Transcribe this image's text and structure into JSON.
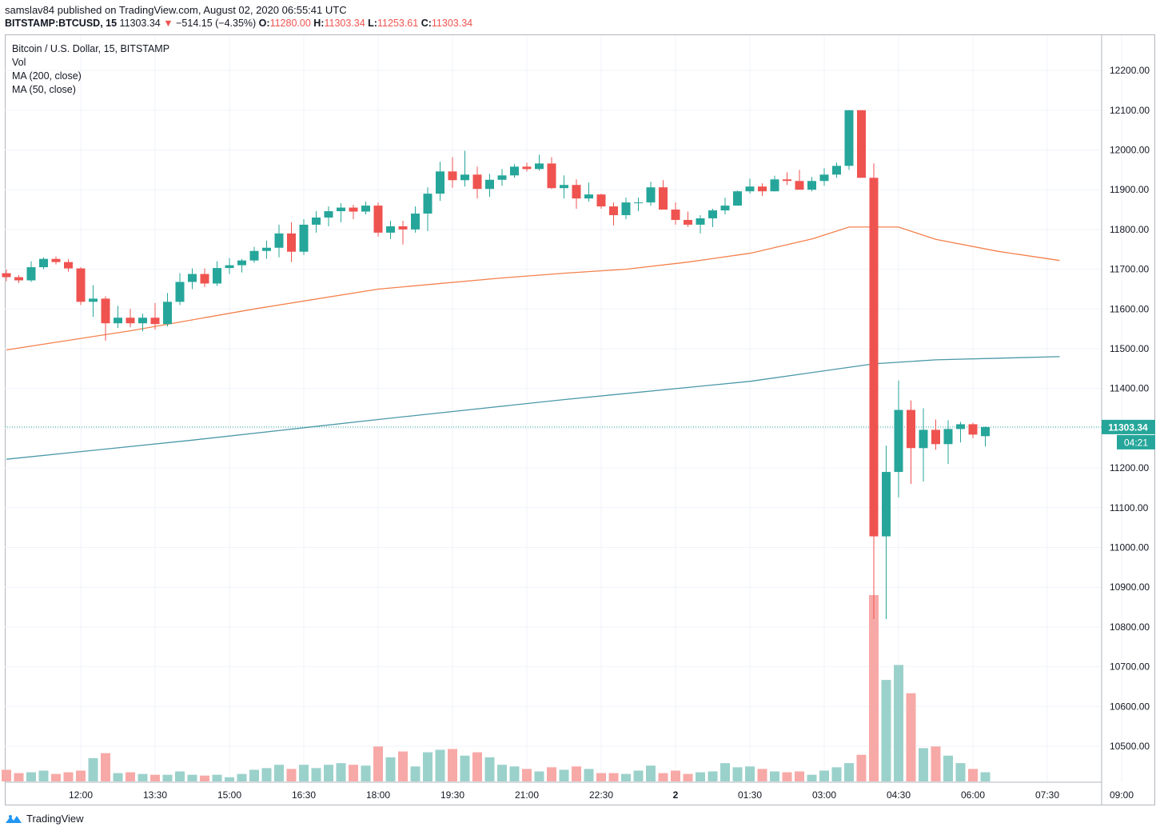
{
  "publish_line": "samslav84 published on TradingView.com, August 02, 2020 06:55:41 UTC",
  "symbol_line": {
    "symbol": "BITSTAMP:BTCUSD, 15",
    "last": "11303.34",
    "change": "−514.15 (−4.35%)",
    "o_label": "O:",
    "o": "11280.00",
    "h_label": "H:",
    "h": "11303.34",
    "l_label": "L:",
    "l": "11253.61",
    "c_label": "C:",
    "c": "11303.34"
  },
  "legend": {
    "title": "Bitcoin / U.S. Dollar, 15, BITSTAMP",
    "vol": "Vol",
    "ma200": "MA (200, close)",
    "ma50": "MA (50, close)"
  },
  "colors": {
    "up": "#26a69a",
    "down": "#ef5350",
    "up_vol": "#9bd1cb",
    "down_vol": "#f7a9a7",
    "ma200": "#4a98a8",
    "ma50": "#f4804c",
    "grid": "#f0f3fa",
    "axis_text": "#131722"
  },
  "last_price_label": "11303.34",
  "countdown_label": "04:21",
  "footer_brand": "TradingView",
  "chart_data": {
    "type": "candlestick",
    "interval": "15m",
    "y_ticks": [
      10500,
      10600,
      10700,
      10800,
      10900,
      11000,
      11100,
      11200,
      11300,
      11400,
      11500,
      11600,
      11700,
      11800,
      11900,
      12000,
      12100,
      12200
    ],
    "y_tick_labels": [
      "10500.00",
      "10600.00",
      "10700.00",
      "10800.00",
      "10900.00",
      "11000.00",
      "11100.00",
      "11200.00",
      "11300.00",
      "11400.00",
      "11500.00",
      "11600.00",
      "11700.00",
      "11800.00",
      "11900.00",
      "12000.00",
      "12100.00",
      "12200.00"
    ],
    "x_ticks": [
      6,
      12,
      18,
      24,
      30,
      36,
      42,
      48,
      54,
      60,
      66,
      72,
      78,
      84,
      90
    ],
    "x_tick_labels": [
      "12:00",
      "13:30",
      "15:00",
      "16:30",
      "18:00",
      "19:30",
      "21:00",
      "22:30",
      "2",
      "01:30",
      "03:00",
      "04:30",
      "06:00",
      "07:30",
      "09:00"
    ],
    "candles": [
      [
        11690,
        11700,
        11670,
        11680,
        14
      ],
      [
        11680,
        11685,
        11665,
        11672,
        10
      ],
      [
        11672,
        11720,
        11668,
        11705,
        11
      ],
      [
        11705,
        11730,
        11700,
        11726,
        13
      ],
      [
        11726,
        11732,
        11712,
        11718,
        9
      ],
      [
        11718,
        11725,
        11694,
        11702,
        11
      ],
      [
        11702,
        11705,
        11610,
        11618,
        13
      ],
      [
        11618,
        11660,
        11580,
        11626,
        28
      ],
      [
        11626,
        11632,
        11520,
        11564,
        34
      ],
      [
        11564,
        11608,
        11552,
        11578,
        10
      ],
      [
        11578,
        11600,
        11554,
        11564,
        11
      ],
      [
        11564,
        11588,
        11544,
        11578,
        9
      ],
      [
        11578,
        11615,
        11548,
        11562,
        8
      ],
      [
        11562,
        11640,
        11556,
        11618,
        8
      ],
      [
        11618,
        11690,
        11610,
        11668,
        12
      ],
      [
        11668,
        11702,
        11650,
        11688,
        8
      ],
      [
        11688,
        11702,
        11655,
        11664,
        7
      ],
      [
        11664,
        11720,
        11658,
        11703,
        8
      ],
      [
        11703,
        11728,
        11688,
        11710,
        5
      ],
      [
        11710,
        11726,
        11692,
        11722,
        9
      ],
      [
        11722,
        11756,
        11716,
        11746,
        14
      ],
      [
        11746,
        11772,
        11726,
        11754,
        16
      ],
      [
        11754,
        11812,
        11730,
        11790,
        20
      ],
      [
        11790,
        11818,
        11718,
        11744,
        15
      ],
      [
        11744,
        11826,
        11736,
        11812,
        20
      ],
      [
        11812,
        11846,
        11792,
        11830,
        16
      ],
      [
        11830,
        11858,
        11808,
        11846,
        20
      ],
      [
        11846,
        11866,
        11818,
        11855,
        22
      ],
      [
        11855,
        11862,
        11826,
        11845,
        20
      ],
      [
        11845,
        11870,
        11838,
        11860,
        19
      ],
      [
        11860,
        11868,
        11782,
        11792,
        42
      ],
      [
        11792,
        11822,
        11776,
        11808,
        29
      ],
      [
        11808,
        11822,
        11762,
        11800,
        36
      ],
      [
        11800,
        11858,
        11792,
        11840,
        18
      ],
      [
        11840,
        11906,
        11796,
        11890,
        35
      ],
      [
        11890,
        11970,
        11872,
        11946,
        38
      ],
      [
        11946,
        11982,
        11905,
        11924,
        39
      ],
      [
        11924,
        11998,
        11908,
        11938,
        31
      ],
      [
        11938,
        11958,
        11878,
        11902,
        35
      ],
      [
        11902,
        11940,
        11882,
        11925,
        29
      ],
      [
        11925,
        11952,
        11910,
        11936,
        20
      ],
      [
        11936,
        11964,
        11930,
        11958,
        18
      ],
      [
        11958,
        11968,
        11946,
        11952,
        15
      ],
      [
        11952,
        11988,
        11948,
        11966,
        12
      ],
      [
        11966,
        11982,
        11902,
        11904,
        17
      ],
      [
        11904,
        11936,
        11878,
        11912,
        14
      ],
      [
        11912,
        11926,
        11852,
        11878,
        18
      ],
      [
        11878,
        11918,
        11870,
        11888,
        15
      ],
      [
        11888,
        11890,
        11852,
        11858,
        10
      ],
      [
        11858,
        11868,
        11810,
        11836,
        10
      ],
      [
        11836,
        11880,
        11826,
        11868,
        9
      ],
      [
        11868,
        11880,
        11846,
        11868,
        13
      ],
      [
        11868,
        11920,
        11860,
        11906,
        19
      ],
      [
        11906,
        11924,
        11852,
        11850,
        10
      ],
      [
        11850,
        11868,
        11812,
        11824,
        13
      ],
      [
        11824,
        11845,
        11806,
        11812,
        9
      ],
      [
        11812,
        11836,
        11790,
        11828,
        11
      ],
      [
        11828,
        11852,
        11806,
        11848,
        12
      ],
      [
        11848,
        11880,
        11838,
        11860,
        22
      ],
      [
        11860,
        11898,
        11862,
        11896,
        17
      ],
      [
        11896,
        11928,
        11890,
        11908,
        18
      ],
      [
        11908,
        11916,
        11884,
        11896,
        15
      ],
      [
        11896,
        11935,
        11896,
        11926,
        12
      ],
      [
        11926,
        11944,
        11912,
        11922,
        11
      ],
      [
        11922,
        11950,
        11904,
        11900,
        12
      ],
      [
        11900,
        11932,
        11896,
        11922,
        8
      ],
      [
        11922,
        11954,
        11910,
        11938,
        13
      ],
      [
        11938,
        11968,
        11930,
        11960,
        17
      ],
      [
        11960,
        12100,
        11950,
        12100,
        22
      ],
      [
        12100,
        12100,
        11936,
        11930,
        32
      ],
      [
        11930,
        11966,
        10820,
        11028,
        224
      ],
      [
        11028,
        11256,
        10820,
        11190,
        122
      ],
      [
        11190,
        11420,
        11126,
        11346,
        140
      ],
      [
        11346,
        11370,
        11160,
        11250,
        106
      ],
      [
        11250,
        11350,
        11166,
        11296,
        40
      ],
      [
        11296,
        11322,
        11246,
        11260,
        42
      ],
      [
        11260,
        11320,
        11210,
        11298,
        31
      ],
      [
        11298,
        11316,
        11264,
        11310,
        22
      ],
      [
        11310,
        11314,
        11275,
        11284,
        15
      ],
      [
        11280,
        11304,
        11254,
        11303,
        11
      ]
    ],
    "ma50": [
      [
        0,
        11497
      ],
      [
        10,
        11545
      ],
      [
        20,
        11600
      ],
      [
        30,
        11650
      ],
      [
        40,
        11678
      ],
      [
        45,
        11690
      ],
      [
        50,
        11700
      ],
      [
        55,
        11718
      ],
      [
        60,
        11740
      ],
      [
        65,
        11776
      ],
      [
        68,
        11806
      ],
      [
        72,
        11806
      ],
      [
        75,
        11775
      ],
      [
        80,
        11745
      ],
      [
        85,
        11722
      ]
    ],
    "ma200": [
      [
        0,
        11222
      ],
      [
        15,
        11270
      ],
      [
        30,
        11322
      ],
      [
        45,
        11372
      ],
      [
        60,
        11418
      ],
      [
        70,
        11462
      ],
      [
        75,
        11472
      ],
      [
        85,
        11480
      ]
    ]
  }
}
